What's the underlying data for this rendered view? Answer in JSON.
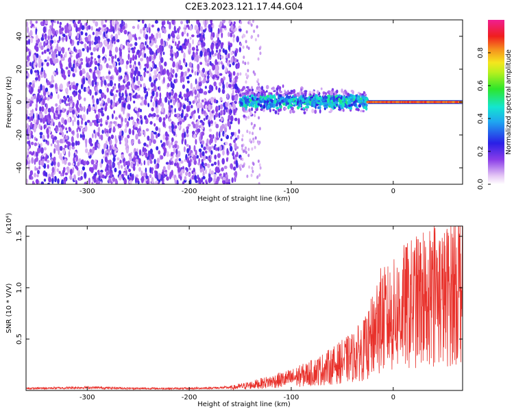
{
  "figure": {
    "title": "C2E3.2023.121.17.44.G04"
  },
  "colors": {
    "snr_line": "#e8302a",
    "axes": "#000000",
    "background": "#ffffff"
  },
  "chart_data": [
    {
      "type": "heatmap",
      "xlabel": "Height of straight line (km)",
      "ylabel": "Frequency (Hz)",
      "xlim": [
        -360,
        68
      ],
      "ylim": [
        -50,
        50
      ],
      "x_ticks": [
        -300,
        -200,
        -100,
        0
      ],
      "y_ticks": [
        -40,
        -20,
        0,
        20,
        40
      ],
      "colorbar": {
        "label": "Normalized spectral amplitude",
        "range": [
          0,
          1
        ],
        "ticks": [
          "0.0",
          "0.2",
          "0.4",
          "0.6",
          "0.8"
        ],
        "colormap": "rainbow (white-violet-blue-cyan-green-yellow-red-magenta)"
      },
      "regions": [
        {
          "x_range": [
            -360,
            -150
          ],
          "freq_range": [
            -50,
            50
          ],
          "amplitude": "low (0.0-0.2), broadband noise"
        },
        {
          "x_range": [
            -150,
            -25
          ],
          "freq_range": [
            -10,
            12
          ],
          "amplitude": "0.2-0.5, band centered near 0 Hz"
        },
        {
          "x_range": [
            -25,
            68
          ],
          "freq_range": [
            -2,
            2
          ],
          "amplitude": "0.8-0.9, narrow line at 0 Hz"
        }
      ]
    },
    {
      "type": "line",
      "xlabel": "Height of straight line (km)",
      "ylabel": "SNR (10 * V/V)",
      "y_scale_note": "(x10⁴)",
      "xlim": [
        -360,
        68
      ],
      "ylim": [
        0,
        1.6
      ],
      "x_ticks": [
        -300,
        -200,
        -100,
        0
      ],
      "y_ticks": [
        "0.5",
        "1.0",
        "1.5"
      ],
      "series": [
        {
          "x": [
            -360,
            -300,
            -250,
            -200,
            -160,
            -140,
            -120,
            -100,
            -80,
            -60,
            -40,
            -25,
            -20,
            -15,
            -10,
            0,
            10,
            20,
            30,
            40,
            50,
            60,
            68
          ],
          "values": [
            0.02,
            0.03,
            0.02,
            0.02,
            0.03,
            0.06,
            0.1,
            0.14,
            0.2,
            0.28,
            0.38,
            0.5,
            0.65,
            0.8,
            0.8,
            0.85,
            0.95,
            1.0,
            1.05,
            1.15,
            1.05,
            1.2,
            1.25
          ]
        }
      ]
    }
  ]
}
